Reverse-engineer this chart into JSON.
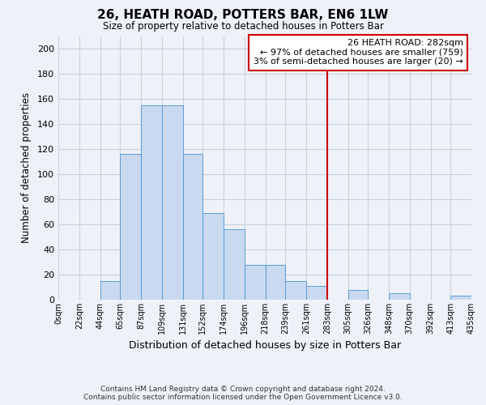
{
  "title": "26, HEATH ROAD, POTTERS BAR, EN6 1LW",
  "subtitle": "Size of property relative to detached houses in Potters Bar",
  "xlabel": "Distribution of detached houses by size in Potters Bar",
  "ylabel": "Number of detached properties",
  "footer_line1": "Contains HM Land Registry data © Crown copyright and database right 2024.",
  "footer_line2": "Contains public sector information licensed under the Open Government Licence v3.0.",
  "bin_edges": [
    0,
    22,
    44,
    65,
    87,
    109,
    131,
    152,
    174,
    196,
    218,
    239,
    261,
    283,
    305,
    326,
    348,
    370,
    392,
    413,
    435
  ],
  "bin_labels": [
    "0sqm",
    "22sqm",
    "44sqm",
    "65sqm",
    "87sqm",
    "109sqm",
    "131sqm",
    "152sqm",
    "174sqm",
    "196sqm",
    "218sqm",
    "239sqm",
    "261sqm",
    "283sqm",
    "305sqm",
    "326sqm",
    "348sqm",
    "370sqm",
    "392sqm",
    "413sqm",
    "435sqm"
  ],
  "counts": [
    0,
    0,
    15,
    116,
    155,
    155,
    116,
    69,
    56,
    28,
    28,
    15,
    11,
    0,
    8,
    0,
    5,
    0,
    0,
    3
  ],
  "bar_color": "#c8d9f0",
  "bar_edge_color": "#5b9bd5",
  "grid_color": "#c8d0e0",
  "vline_x": 283,
  "vline_color": "#cc0000",
  "annotation_text": "26 HEATH ROAD: 282sqm\n← 97% of detached houses are smaller (759)\n3% of semi-detached houses are larger (20) →",
  "annotation_box_color": "#ffffff",
  "annotation_box_edge": "#cc0000",
  "ylim": [
    0,
    210
  ],
  "yticks": [
    0,
    20,
    40,
    60,
    80,
    100,
    120,
    140,
    160,
    180,
    200
  ],
  "background_color": "#eef2f8"
}
